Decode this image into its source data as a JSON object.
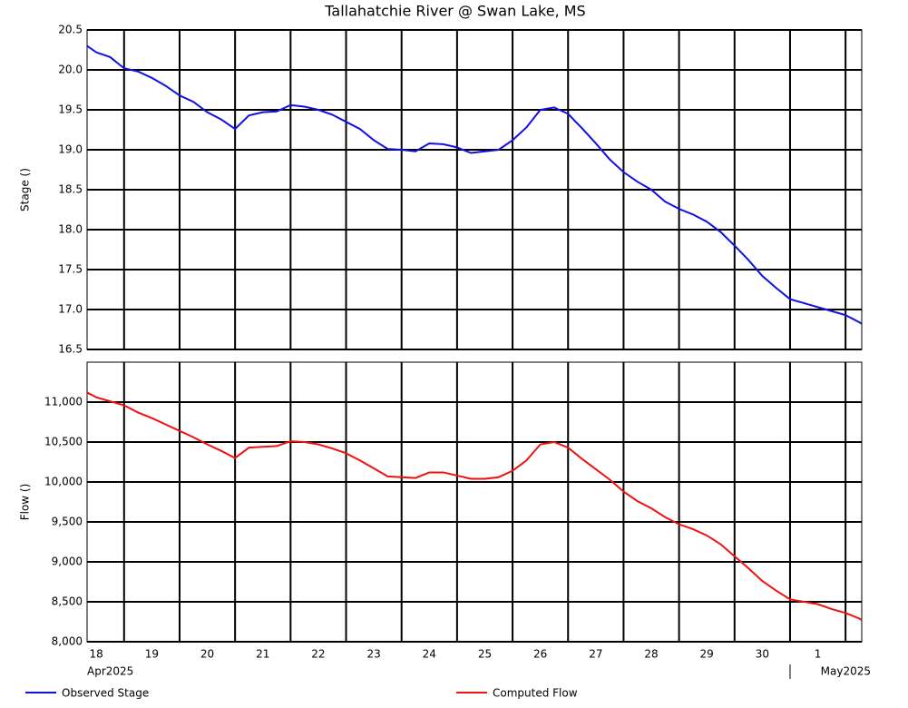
{
  "chart_data": [
    {
      "type": "line",
      "title": "Tallahatchie River @ Swan Lake, MS",
      "ylabel": "Stage ()",
      "x": [
        "2025-04-18T08:00",
        "2025-04-18T12:00",
        "2025-04-18T18:00",
        "2025-04-19T00:00",
        "2025-04-19T06:00",
        "2025-04-19T12:00",
        "2025-04-19T18:00",
        "2025-04-20T00:00",
        "2025-04-20T06:00",
        "2025-04-20T12:00",
        "2025-04-20T18:00",
        "2025-04-21T00:00",
        "2025-04-21T06:00",
        "2025-04-21T12:00",
        "2025-04-21T18:00",
        "2025-04-22T00:00",
        "2025-04-22T06:00",
        "2025-04-22T12:00",
        "2025-04-22T18:00",
        "2025-04-23T00:00",
        "2025-04-23T06:00",
        "2025-04-23T12:00",
        "2025-04-23T18:00",
        "2025-04-24T00:00",
        "2025-04-24T06:00",
        "2025-04-24T12:00",
        "2025-04-24T18:00",
        "2025-04-25T00:00",
        "2025-04-25T06:00",
        "2025-04-25T12:00",
        "2025-04-25T18:00",
        "2025-04-26T00:00",
        "2025-04-26T06:00",
        "2025-04-26T12:00",
        "2025-04-26T18:00",
        "2025-04-27T00:00",
        "2025-04-27T06:00",
        "2025-04-27T12:00",
        "2025-04-27T18:00",
        "2025-04-28T00:00",
        "2025-04-28T06:00",
        "2025-04-28T12:00",
        "2025-04-28T18:00",
        "2025-04-29T00:00",
        "2025-04-29T06:00",
        "2025-04-29T12:00",
        "2025-04-29T18:00",
        "2025-04-30T00:00",
        "2025-04-30T06:00",
        "2025-04-30T12:00",
        "2025-04-30T18:00",
        "2025-05-01T00:00",
        "2025-05-01T06:00",
        "2025-05-01T12:00",
        "2025-05-01T18:00",
        "2025-05-02T00:00",
        "2025-05-02T06:00",
        "2025-05-02T07:00"
      ],
      "xlim": [
        "2025-04-18T08:00",
        "2025-05-02T07:00"
      ],
      "ylim": [
        16.5,
        20.5
      ],
      "yticks": [
        16.5,
        {
          "value": 17,
          "label": "17.0"
        },
        17.5,
        {
          "value": 18,
          "label": "18.0"
        },
        18.5,
        {
          "value": 19,
          "label": "19.0"
        },
        19.5,
        {
          "value": 20,
          "label": "20.0"
        },
        20.5
      ],
      "grid": true,
      "series": [
        {
          "name": "Observed Stage",
          "color": "#1010e0",
          "values": [
            20.3,
            20.22,
            20.16,
            20.02,
            19.98,
            19.9,
            19.8,
            19.68,
            19.6,
            19.47,
            19.38,
            19.26,
            19.43,
            19.47,
            19.48,
            19.56,
            19.54,
            19.5,
            19.44,
            19.35,
            19.26,
            19.12,
            19.01,
            19.0,
            18.98,
            19.08,
            19.07,
            19.03,
            18.96,
            18.98,
            19.0,
            19.12,
            19.28,
            19.5,
            19.53,
            19.45,
            19.27,
            19.08,
            18.88,
            18.72,
            18.6,
            18.5,
            18.35,
            18.26,
            18.19,
            18.1,
            17.97,
            17.8,
            17.62,
            17.42,
            17.27,
            17.13,
            17.08,
            17.03,
            16.98,
            16.93,
            16.84,
            16.82
          ]
        }
      ]
    },
    {
      "type": "line",
      "ylabel": "Flow ()",
      "x": [
        "2025-04-18T08:00",
        "2025-04-18T12:00",
        "2025-04-18T18:00",
        "2025-04-19T00:00",
        "2025-04-19T06:00",
        "2025-04-19T12:00",
        "2025-04-19T18:00",
        "2025-04-20T00:00",
        "2025-04-20T06:00",
        "2025-04-20T12:00",
        "2025-04-20T18:00",
        "2025-04-21T00:00",
        "2025-04-21T06:00",
        "2025-04-21T12:00",
        "2025-04-21T18:00",
        "2025-04-22T00:00",
        "2025-04-22T06:00",
        "2025-04-22T12:00",
        "2025-04-22T18:00",
        "2025-04-23T00:00",
        "2025-04-23T06:00",
        "2025-04-23T12:00",
        "2025-04-23T18:00",
        "2025-04-24T00:00",
        "2025-04-24T06:00",
        "2025-04-24T12:00",
        "2025-04-24T18:00",
        "2025-04-25T00:00",
        "2025-04-25T06:00",
        "2025-04-25T12:00",
        "2025-04-25T18:00",
        "2025-04-26T00:00",
        "2025-04-26T06:00",
        "2025-04-26T12:00",
        "2025-04-26T18:00",
        "2025-04-27T00:00",
        "2025-04-27T06:00",
        "2025-04-27T12:00",
        "2025-04-27T18:00",
        "2025-04-28T00:00",
        "2025-04-28T06:00",
        "2025-04-28T12:00",
        "2025-04-28T18:00",
        "2025-04-29T00:00",
        "2025-04-29T06:00",
        "2025-04-29T12:00",
        "2025-04-29T18:00",
        "2025-04-30T00:00",
        "2025-04-30T06:00",
        "2025-04-30T12:00",
        "2025-04-30T18:00",
        "2025-05-01T00:00",
        "2025-05-01T06:00",
        "2025-05-01T12:00",
        "2025-05-01T18:00",
        "2025-05-02T00:00",
        "2025-05-02T06:00",
        "2025-05-02T07:00"
      ],
      "xlim": [
        "2025-04-18T08:00",
        "2025-05-02T07:00"
      ],
      "xticks": [
        {
          "value": "2025-04-18T00:00",
          "label": "18"
        },
        {
          "value": "2025-04-19T00:00",
          "label": "19"
        },
        {
          "value": "2025-04-20T00:00",
          "label": "20"
        },
        {
          "value": "2025-04-21T00:00",
          "label": "21"
        },
        {
          "value": "2025-04-22T00:00",
          "label": "22"
        },
        {
          "value": "2025-04-23T00:00",
          "label": "23"
        },
        {
          "value": "2025-04-24T00:00",
          "label": "24"
        },
        {
          "value": "2025-04-25T00:00",
          "label": "25"
        },
        {
          "value": "2025-04-26T00:00",
          "label": "26"
        },
        {
          "value": "2025-04-27T00:00",
          "label": "27"
        },
        {
          "value": "2025-04-28T00:00",
          "label": "28"
        },
        {
          "value": "2025-04-29T00:00",
          "label": "29"
        },
        {
          "value": "2025-04-30T00:00",
          "label": "30"
        },
        {
          "value": "2025-05-01T00:00",
          "label": "1"
        },
        {
          "value": "2025-05-02T00:00"
        }
      ],
      "month_labels": [
        {
          "value": "2025-04-18T08:00",
          "label": "Apr2025"
        },
        {
          "value": "2025-05-01T00:00",
          "label": "May2025"
        }
      ],
      "ylim": [
        8000,
        11500
      ],
      "yticks": [
        {
          "value": 8000,
          "label": "8,000"
        },
        {
          "value": 8500,
          "label": "8,500"
        },
        {
          "value": 9000,
          "label": "9,000"
        },
        {
          "value": 9500,
          "label": "9,500"
        },
        {
          "value": 10000,
          "label": "10,000"
        },
        {
          "value": 10500,
          "label": "10,500"
        },
        {
          "value": 11000,
          "label": "11,000"
        }
      ],
      "grid": true,
      "legend": "bottom",
      "series": [
        {
          "name": "Computed Flow",
          "color": "#f01010",
          "values": [
            11120,
            11060,
            11010,
            10960,
            10870,
            10800,
            10720,
            10640,
            10560,
            10470,
            10390,
            10300,
            10430,
            10440,
            10450,
            10510,
            10500,
            10470,
            10420,
            10360,
            10270,
            10170,
            10070,
            10060,
            10050,
            10120,
            10120,
            10080,
            10040,
            10040,
            10060,
            10140,
            10270,
            10470,
            10500,
            10430,
            10290,
            10160,
            10030,
            9880,
            9760,
            9670,
            9560,
            9470,
            9410,
            9330,
            9220,
            9070,
            8920,
            8760,
            8640,
            8530,
            8500,
            8470,
            8410,
            8360,
            8290,
            8270
          ]
        }
      ]
    }
  ]
}
